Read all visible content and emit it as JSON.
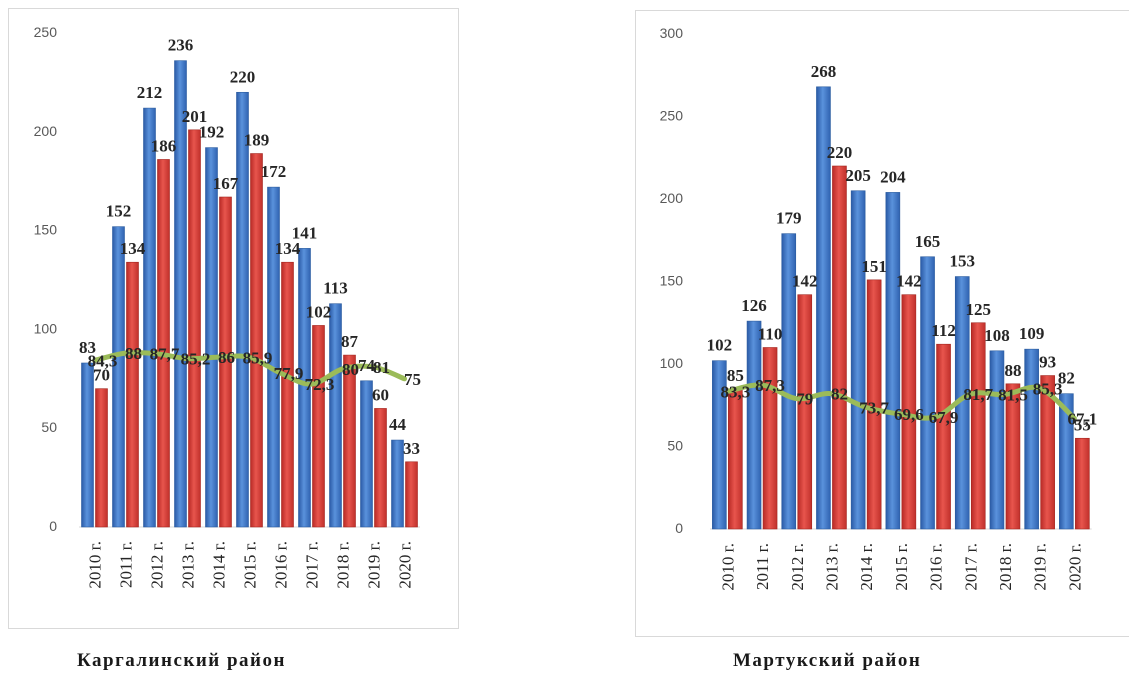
{
  "chart_data": [
    {
      "type": "bar",
      "categories": [
        "2010 г.",
        "2011 г.",
        "2012 г.",
        "2013 г.",
        "2014 г.",
        "2015 г.",
        "2016 г.",
        "2017 г.",
        "2018 г.",
        "2019 г.",
        "2020 г."
      ],
      "series": [
        {
          "values": [
            83,
            152,
            212,
            236,
            192,
            220,
            172,
            141,
            113,
            74,
            44
          ],
          "labels": [
            "83",
            "152",
            "212",
            "236",
            "192",
            "220",
            "172",
            "141",
            "113",
            "74",
            "44"
          ]
        },
        {
          "values": [
            70,
            134,
            186,
            201,
            167,
            189,
            134,
            102,
            87,
            60,
            33
          ],
          "labels": [
            "70",
            "134",
            "186",
            "201",
            "167",
            "189",
            "134",
            "102",
            "87",
            "60",
            "33"
          ]
        },
        {
          "values": [
            84.3,
            88.0,
            87.7,
            85.2,
            86.0,
            85.9,
            77.9,
            72.3,
            80.0,
            81.0,
            75.0
          ],
          "labels": [
            "84,3",
            "88",
            "87,7",
            "85,2",
            "86",
            "85,9",
            "77,9",
            "72,3",
            "80",
            "81",
            "75"
          ]
        }
      ],
      "yticks": [
        0,
        50,
        100,
        150,
        200,
        250
      ],
      "ylim": [
        0,
        250
      ],
      "grid": false,
      "legend": "none",
      "colors": {
        "bar1": "#3a70c2",
        "bar2": "#d23a34",
        "line": "#9bbb59"
      },
      "caption": "Каргалинский район"
    },
    {
      "type": "bar",
      "categories": [
        "2010 г.",
        "2011 г.",
        "2012 г.",
        "2013 г.",
        "2014 г.",
        "2015 г.",
        "2016 г.",
        "2017 г.",
        "2018 г.",
        "2019 г.",
        "2020 г."
      ],
      "series": [
        {
          "values": [
            102,
            126,
            179,
            268,
            205,
            204,
            165,
            153,
            108,
            109,
            82
          ],
          "labels": [
            "102",
            "126",
            "179",
            "268",
            "205",
            "204",
            "165",
            "153",
            "108",
            "109",
            "82"
          ]
        },
        {
          "values": [
            85,
            110,
            142,
            220,
            151,
            142,
            112,
            125,
            88,
            93,
            55
          ],
          "labels": [
            "85",
            "110",
            "142",
            "220",
            "151",
            "142",
            "112",
            "125",
            "88",
            "93",
            "55"
          ]
        },
        {
          "values": [
            83.3,
            87.3,
            79.0,
            82.0,
            73.7,
            69.6,
            67.9,
            81.7,
            81.5,
            85.3,
            67.1
          ],
          "labels": [
            "83,3",
            "87,3",
            "79",
            "82",
            "73,7",
            "69,6",
            "67,9",
            "81,7",
            "81,5",
            "85,3",
            "67,1"
          ]
        }
      ],
      "yticks": [
        0,
        50,
        100,
        150,
        200,
        250,
        300
      ],
      "ylim": [
        0,
        300
      ],
      "grid": false,
      "legend": "none",
      "colors": {
        "bar1": "#3a70c2",
        "bar2": "#d23a34",
        "line": "#9bbb59"
      },
      "caption": "Мартукский район"
    }
  ]
}
